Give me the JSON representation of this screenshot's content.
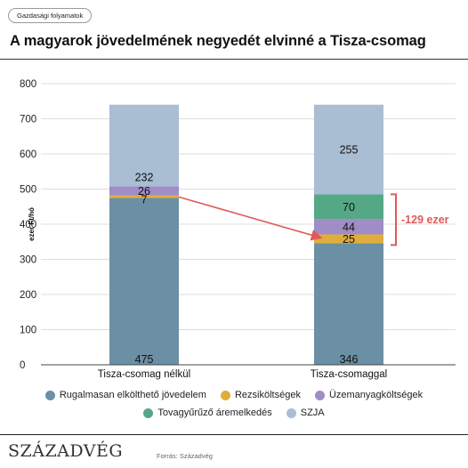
{
  "tag": "Gazdasági folyamatok",
  "title": "A magyarok jövedelmének negyedét elvinné a Tisza-csomag",
  "chart_data": {
    "type": "bar",
    "stacked": true,
    "ylabel": "ezer Ft/hó",
    "ylim": [
      0,
      800
    ],
    "yticks": [
      0,
      100,
      200,
      300,
      400,
      500,
      600,
      700,
      800
    ],
    "grid": true,
    "categories": [
      "Tisza-csomag nélkül",
      "Tisza-csomaggal"
    ],
    "series": [
      {
        "name": "Rugalmasan elkölthető jövedelem",
        "color": "#6b8fa4",
        "values": [
          475,
          346
        ],
        "labels": [
          "475",
          "346"
        ]
      },
      {
        "name": "Rezsiköltségek",
        "color": "#e0ad3a",
        "values": [
          7,
          25
        ],
        "labels": [
          "7",
          "25"
        ]
      },
      {
        "name": "Üzemanyagköltségek",
        "color": "#a08cc6",
        "values": [
          26,
          44
        ],
        "labels": [
          "26",
          "44"
        ]
      },
      {
        "name": "Tovagyűrűző áremelkedés",
        "color": "#55a886",
        "values": [
          0,
          70
        ],
        "labels": [
          "",
          "70"
        ]
      },
      {
        "name": "SZJA",
        "color": "#a9bdd3",
        "values": [
          232,
          255
        ],
        "labels": [
          "232",
          "255"
        ]
      }
    ],
    "annotation": {
      "text": "-129 ezer",
      "color": "#e05a5a"
    },
    "legend_position": "bottom"
  },
  "legend_rows": [
    [
      {
        "label": "Rugalmasan elkölthető jövedelem",
        "color": "#6b8fa4"
      },
      {
        "label": "Rezsiköltségek",
        "color": "#e0ad3a"
      },
      {
        "label": "Üzemanyagköltségek",
        "color": "#a08cc6"
      }
    ],
    [
      {
        "label": "Tovagyűrűző áremelkedés",
        "color": "#55a886"
      },
      {
        "label": "SZJA",
        "color": "#a9bdd3"
      }
    ]
  ],
  "brand": "SZÁZADVÉG",
  "source": "Forrás: Századvég"
}
